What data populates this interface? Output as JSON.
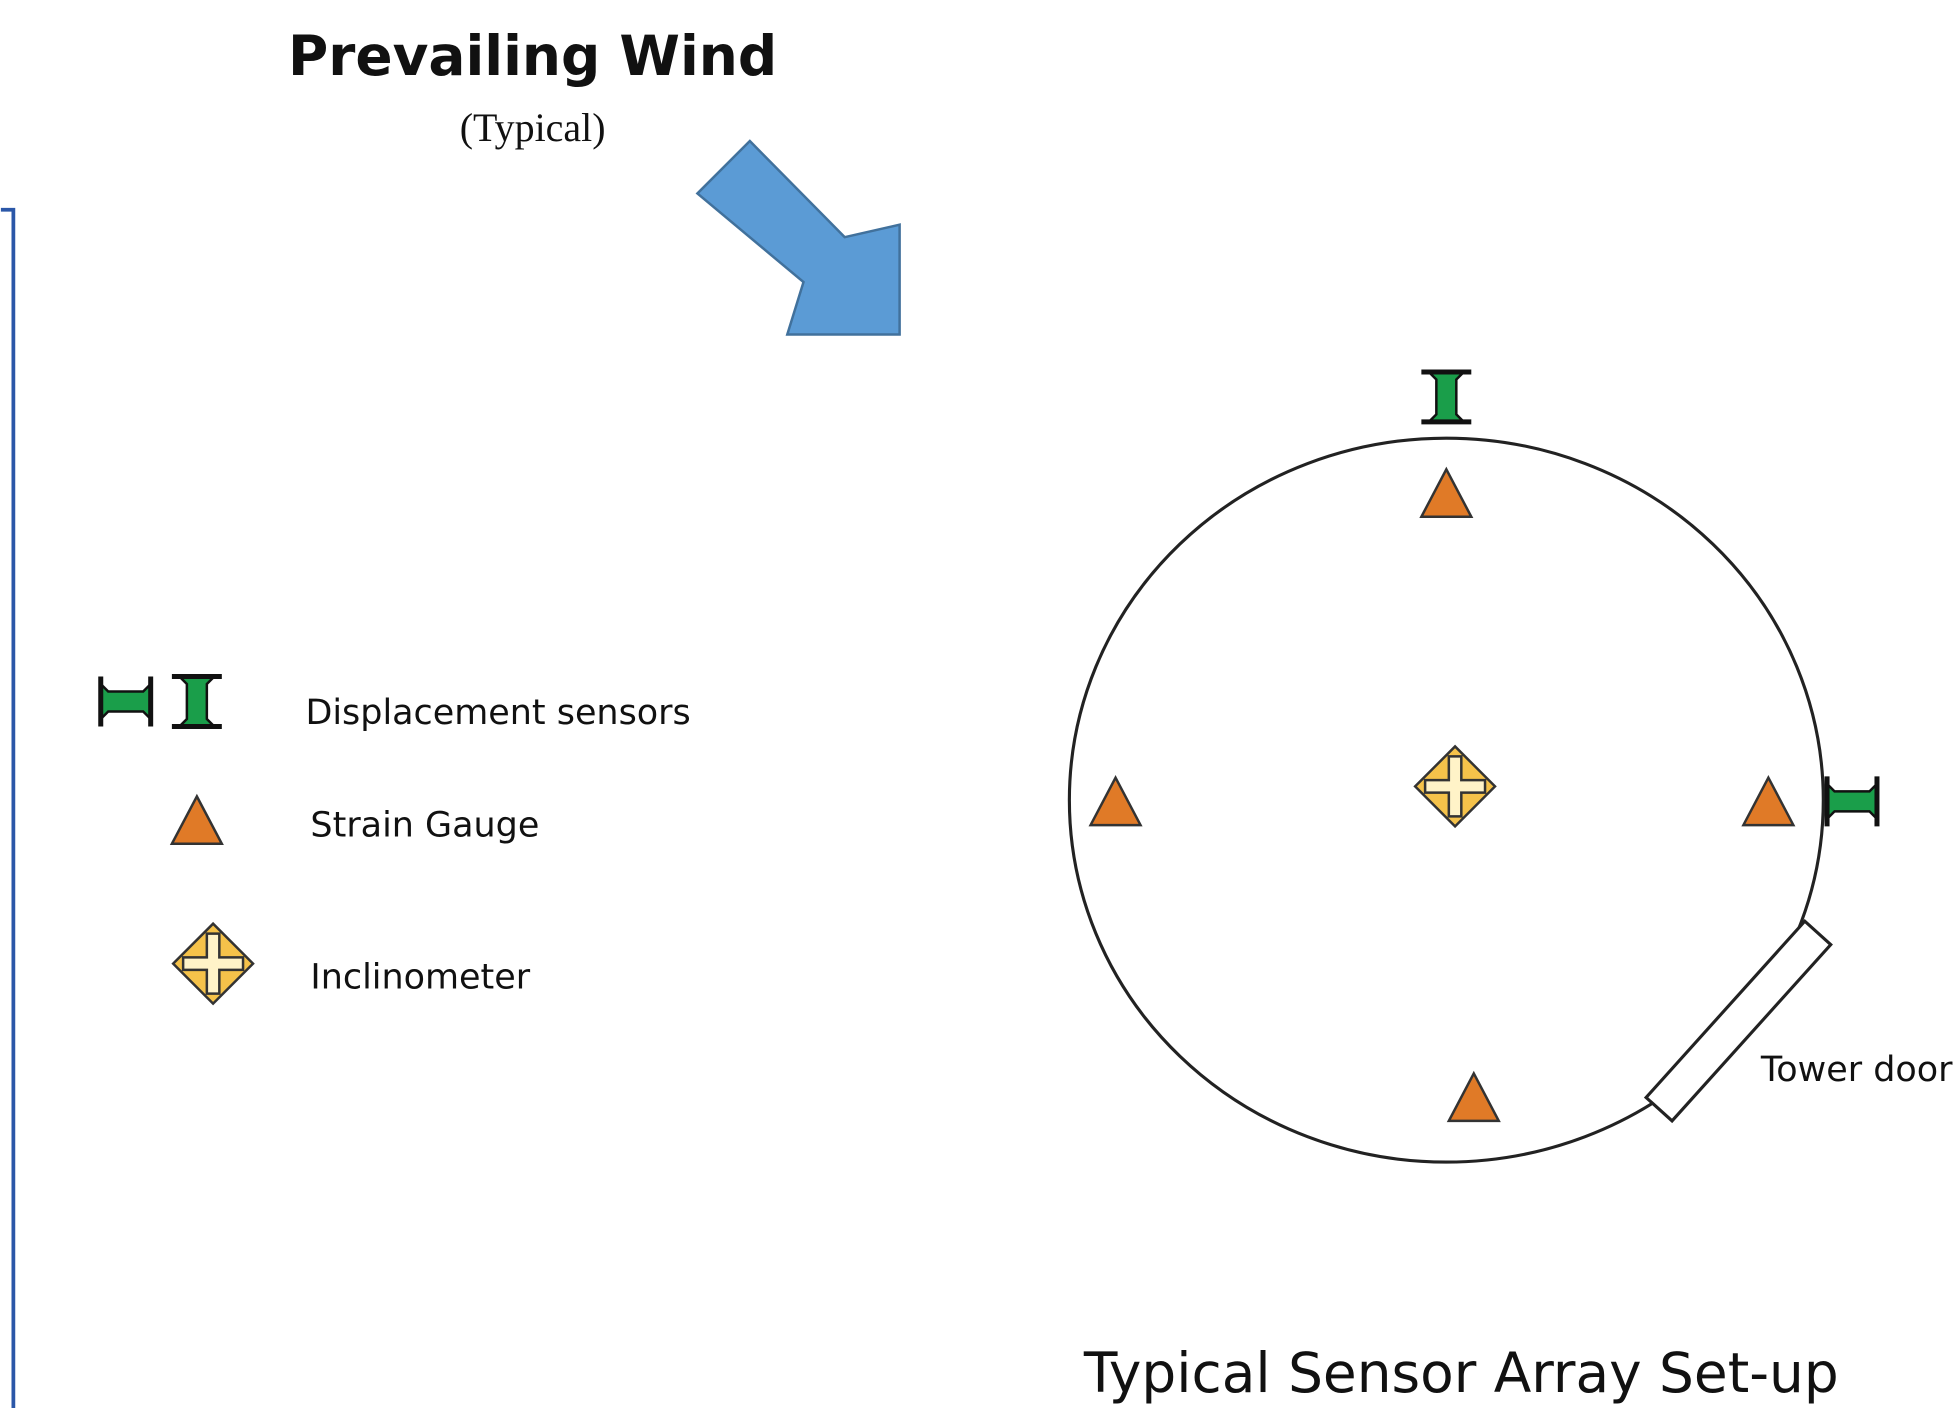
{
  "title": "Prevailing Wind",
  "subtitle": "(Typical)",
  "legend": [
    {
      "label": "Displacement sensors"
    },
    {
      "label": "Strain Gauge"
    },
    {
      "label": "Inclinometer"
    }
  ],
  "door_label": "Tower door",
  "caption": "Typical Sensor Array Set-up"
}
